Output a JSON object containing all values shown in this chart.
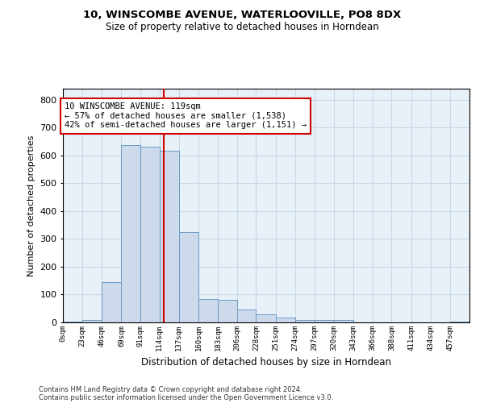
{
  "title1": "10, WINSCOMBE AVENUE, WATERLOOVILLE, PO8 8DX",
  "title2": "Size of property relative to detached houses in Horndean",
  "xlabel": "Distribution of detached houses by size in Horndean",
  "ylabel": "Number of detached properties",
  "footer1": "Contains HM Land Registry data © Crown copyright and database right 2024.",
  "footer2": "Contains public sector information licensed under the Open Government Licence v3.0.",
  "annotation_line1": "10 WINSCOMBE AVENUE: 119sqm",
  "annotation_line2": "← 57% of detached houses are smaller (1,538)",
  "annotation_line3": "42% of semi-detached houses are larger (1,151) →",
  "property_size": 119,
  "bar_color": "#ccdaec",
  "bar_edge_color": "#6a9cc4",
  "vline_color": "#cc0000",
  "annotation_box_color": "#cc0000",
  "grid_color": "#c8d8e8",
  "bg_color": "#e8f0f8",
  "categories": [
    "0sqm",
    "23sqm",
    "46sqm",
    "69sqm",
    "91sqm",
    "114sqm",
    "137sqm",
    "160sqm",
    "183sqm",
    "206sqm",
    "228sqm",
    "251sqm",
    "274sqm",
    "297sqm",
    "320sqm",
    "343sqm",
    "366sqm",
    "388sqm",
    "411sqm",
    "434sqm",
    "457sqm"
  ],
  "bin_edges": [
    0,
    23,
    46,
    69,
    91,
    114,
    137,
    160,
    183,
    206,
    228,
    251,
    274,
    297,
    320,
    343,
    366,
    388,
    411,
    434,
    457,
    480
  ],
  "bar_heights": [
    3,
    10,
    145,
    638,
    632,
    618,
    325,
    83,
    80,
    47,
    30,
    18,
    8,
    10,
    10,
    0,
    0,
    0,
    0,
    0,
    3
  ],
  "ylim": [
    0,
    840
  ],
  "yticks": [
    0,
    100,
    200,
    300,
    400,
    500,
    600,
    700,
    800
  ]
}
